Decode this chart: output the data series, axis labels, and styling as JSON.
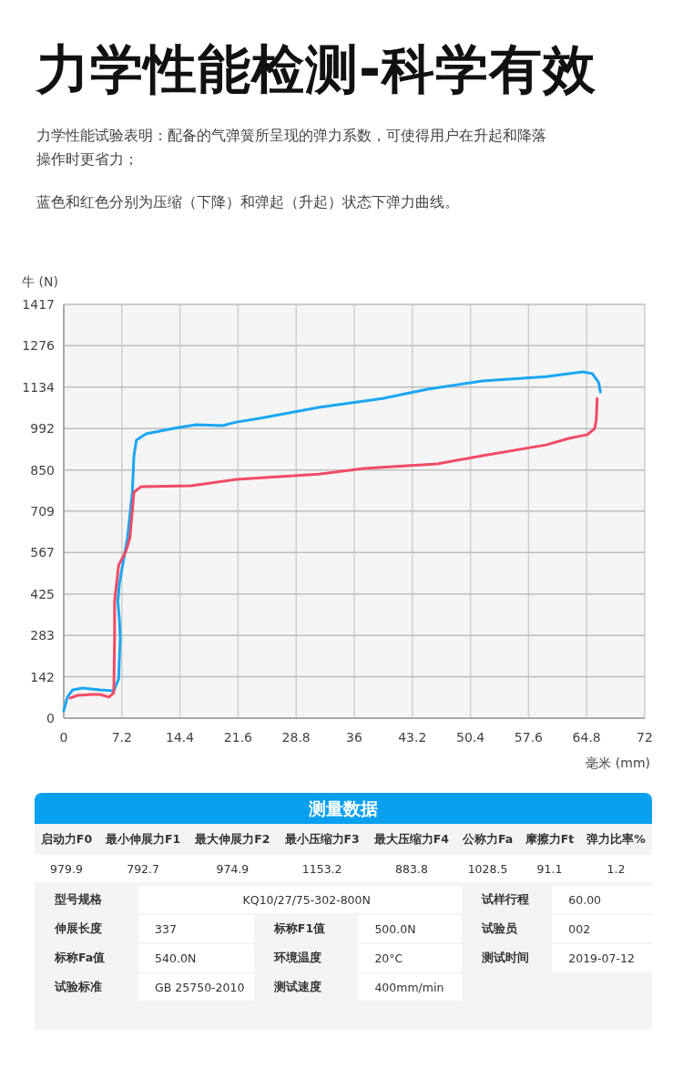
{
  "chart_data": {
    "type": "line",
    "title": "力学性能检测-科学有效",
    "subtitle": "力学性能试验表明：配备的气弹簧所呈现的弹力系数，可使得用户在升起和降落操作时更省力；",
    "xlabel": "毫米 (mm)",
    "ylabel": "牛 (N)",
    "xlim": [
      0,
      72
    ],
    "xticks": [
      0,
      7.2,
      14.4,
      21.6,
      28.8,
      36,
      43.2,
      50.4,
      57.6,
      64.8,
      72
    ],
    "ylim": [
      0,
      1417
    ],
    "yticks": [
      0,
      142,
      283,
      425,
      567,
      709,
      850,
      992,
      1134,
      1276,
      1417
    ],
    "grid": true,
    "line_style": "solid",
    "series": [
      {
        "color": "#1ba6f2",
        "x": [
          0,
          0.45,
          1.1,
          2.3,
          4.5,
          6.2,
          6.8,
          7.0,
          6.9,
          6.7,
          6.9,
          7.3,
          7.9,
          8.5,
          8.7,
          9.0,
          10.2,
          13.5,
          16.4,
          19.7,
          21.4,
          24.3,
          31.6,
          39.5,
          45.1,
          51.9,
          59.8,
          64.3,
          65.5,
          66.3,
          66.5
        ],
        "values": [
          25,
          72,
          97,
          103,
          97,
          94,
          134,
          275,
          337,
          400,
          462,
          524,
          618,
          774,
          899,
          952,
          974,
          992,
          1005,
          1002,
          1014,
          1027,
          1064,
          1095,
          1127,
          1155,
          1170,
          1186,
          1180,
          1149,
          1117
        ]
      },
      {
        "color": "#f24b66",
        "x": [
          0.8,
          1.7,
          3.4,
          4.5,
          5.6,
          6.2,
          6.3,
          6.3,
          6.8,
          7.7,
          8.2,
          8.5,
          8.7,
          9.6,
          15.8,
          21.4,
          31.6,
          37.2,
          46.3,
          51.9,
          59.8,
          62.6,
          64.9,
          65.8,
          66.0,
          66.1
        ],
        "values": [
          69,
          78,
          81,
          81,
          72,
          87,
          275,
          400,
          524,
          571,
          618,
          712,
          774,
          793,
          796,
          818,
          836,
          855,
          871,
          899,
          936,
          958,
          971,
          992,
          1024,
          1095
        ]
      }
    ],
    "annotations": [
      "蓝色和红色分别为压缩（下降）和弹起（升起）状态下弹力曲线。",
      "测量数据",
      "启动力F0",
      "最小伸展力F1",
      "最大伸展力F2",
      "最小压缩力F3",
      "最大压缩力F4",
      "公称力Fa",
      "摩擦力Ft",
      "弹力比率%",
      "979.9",
      "792.7",
      "974.9",
      "1153.2",
      "883.8",
      "1028.5",
      "91.1",
      "1.2",
      "型号规格",
      "KQ10/27/75-302-800N",
      "试样行程",
      "60.00",
      "伸展长度",
      "337",
      "标称F1值",
      "500.0N",
      "试验员",
      "002",
      "标称Fa值",
      "540.0N",
      "环境温度",
      "20°C",
      "测试时间",
      "2019-07-12",
      "试验标准",
      "GB 25750-2010",
      "测试速度",
      "400mm/min"
    ]
  }
}
